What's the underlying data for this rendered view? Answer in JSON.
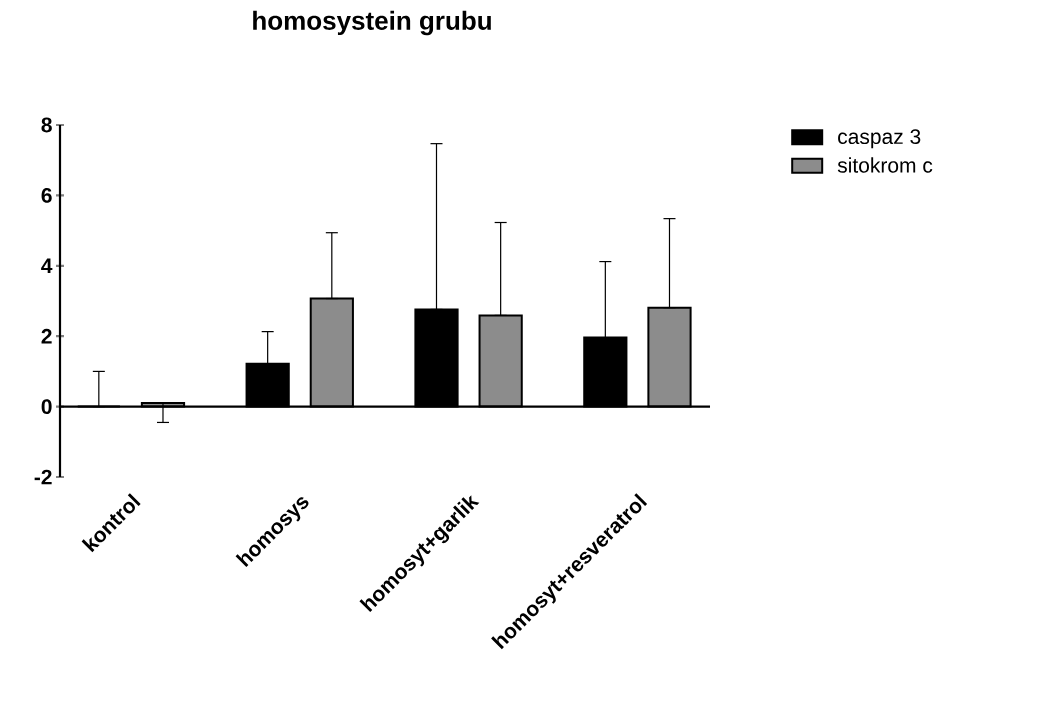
{
  "chart_data": {
    "type": "bar",
    "title": "homosystein grubu",
    "categories": [
      "kontrol",
      "homosys",
      "homosyt+garlik",
      "homosyt+resveratrol"
    ],
    "series": [
      {
        "name": "caspaz 3",
        "color": "#000000",
        "values": [
          0,
          1.22,
          2.76,
          1.96
        ],
        "errors": [
          [
            0,
            1
          ],
          [
            1.22,
            2.13
          ],
          [
            2.76,
            7.47
          ],
          [
            1.96,
            4.12
          ]
        ]
      },
      {
        "name": "sitokrom c",
        "color": "#8c8c8c",
        "values": [
          0.1,
          3.07,
          2.59,
          2.81
        ],
        "errors": [
          [
            -0.45,
            0.1
          ],
          [
            3.07,
            4.94
          ],
          [
            2.59,
            5.23
          ],
          [
            2.81,
            5.34
          ]
        ]
      }
    ],
    "ylim": [
      -2,
      8
    ],
    "yticks": [
      -2,
      0,
      2,
      4,
      6,
      8
    ],
    "legend": "top right"
  }
}
